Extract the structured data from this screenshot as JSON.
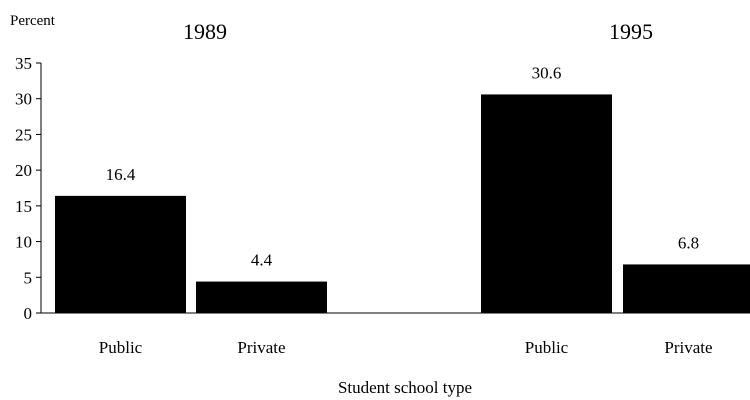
{
  "chart_data": {
    "type": "bar",
    "ylabel": "Percent",
    "xlabel": "Student school type",
    "ylim": [
      0,
      35
    ],
    "yticks": [
      0,
      5,
      10,
      15,
      20,
      25,
      30,
      35
    ],
    "grid": false,
    "bar_color": "#000000",
    "groups": [
      {
        "title": "1989",
        "categories": [
          "Public",
          "Private"
        ],
        "values": [
          16.4,
          4.4
        ],
        "value_labels": [
          "16.4",
          "4.4"
        ]
      },
      {
        "title": "1995",
        "categories": [
          "Public",
          "Private"
        ],
        "values": [
          30.6,
          6.8
        ],
        "value_labels": [
          "30.6",
          "6.8"
        ]
      }
    ]
  }
}
